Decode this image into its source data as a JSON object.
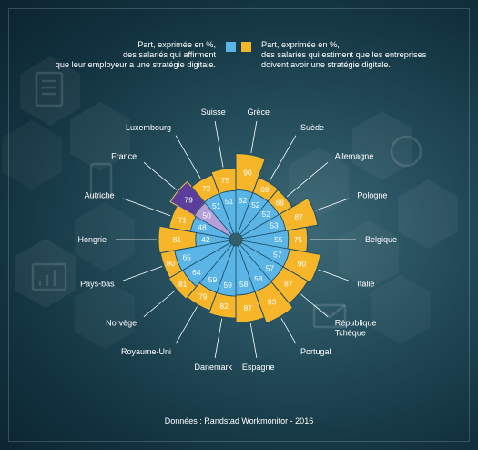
{
  "legend": {
    "left": [
      "Part, exprimée en %,",
      "des salariés qui affirment",
      "que leur employeur a une stratégie digitale."
    ],
    "right": [
      "Part, exprimée en %,",
      "des salariés qui estiment que les entreprises",
      "doivent avoir une stratégie digitale."
    ]
  },
  "source": "Données : Randstad Workmonitor - 2016",
  "colors": {
    "inner": "#5ab4e6",
    "outer": "#f7b52a",
    "inner_highlight": "#b49fd8",
    "outer_highlight": "#5b3d9b",
    "stroke": "#1d4f66"
  },
  "icons": [
    "document-icon",
    "chart-icon",
    "phone-icon",
    "mail-icon",
    "grid-icon"
  ],
  "chart_data": {
    "type": "radial-bar",
    "title": "",
    "highlight": "France",
    "series": [
      {
        "name": "Part, exprimée en %, des salariés qui affirment que leur employeur a une stratégie digitale.",
        "key": "inner"
      },
      {
        "name": "Part, exprimée en %, des salariés qui estiment que les entreprises doivent avoir une stratégie digitale.",
        "key": "outer"
      }
    ],
    "categories": [
      {
        "country": "Grèce",
        "inner": 52,
        "outer": 90
      },
      {
        "country": "Suède",
        "inner": 52,
        "outer": 69
      },
      {
        "country": "Allemagne",
        "inner": 52,
        "outer": 68
      },
      {
        "country": "Pologne",
        "inner": 53,
        "outer": 87
      },
      {
        "country": "Belgique",
        "inner": 55,
        "outer": 75
      },
      {
        "country": "Italie",
        "inner": 57,
        "outer": 90
      },
      {
        "country": "République Tchèque",
        "inner": 57,
        "outer": 87
      },
      {
        "country": "Portugal",
        "inner": 58,
        "outer": 93
      },
      {
        "country": "Espagne",
        "inner": 58,
        "outer": 87
      },
      {
        "country": "Danemark",
        "inner": 59,
        "outer": 82
      },
      {
        "country": "Royaume-Uni",
        "inner": 59,
        "outer": 79
      },
      {
        "country": "Norvège",
        "inner": 64,
        "outer": 81
      },
      {
        "country": "Pays-bas",
        "inner": 65,
        "outer": 80
      },
      {
        "country": "Hongrie",
        "inner": 42,
        "outer": 81
      },
      {
        "country": "Autriche",
        "inner": 48,
        "outer": 71
      },
      {
        "country": "France",
        "inner": 50,
        "outer": 79
      },
      {
        "country": "Luxembourg",
        "inner": 51,
        "outer": 72
      },
      {
        "country": "Suisse",
        "inner": 51,
        "outer": 75
      }
    ]
  }
}
